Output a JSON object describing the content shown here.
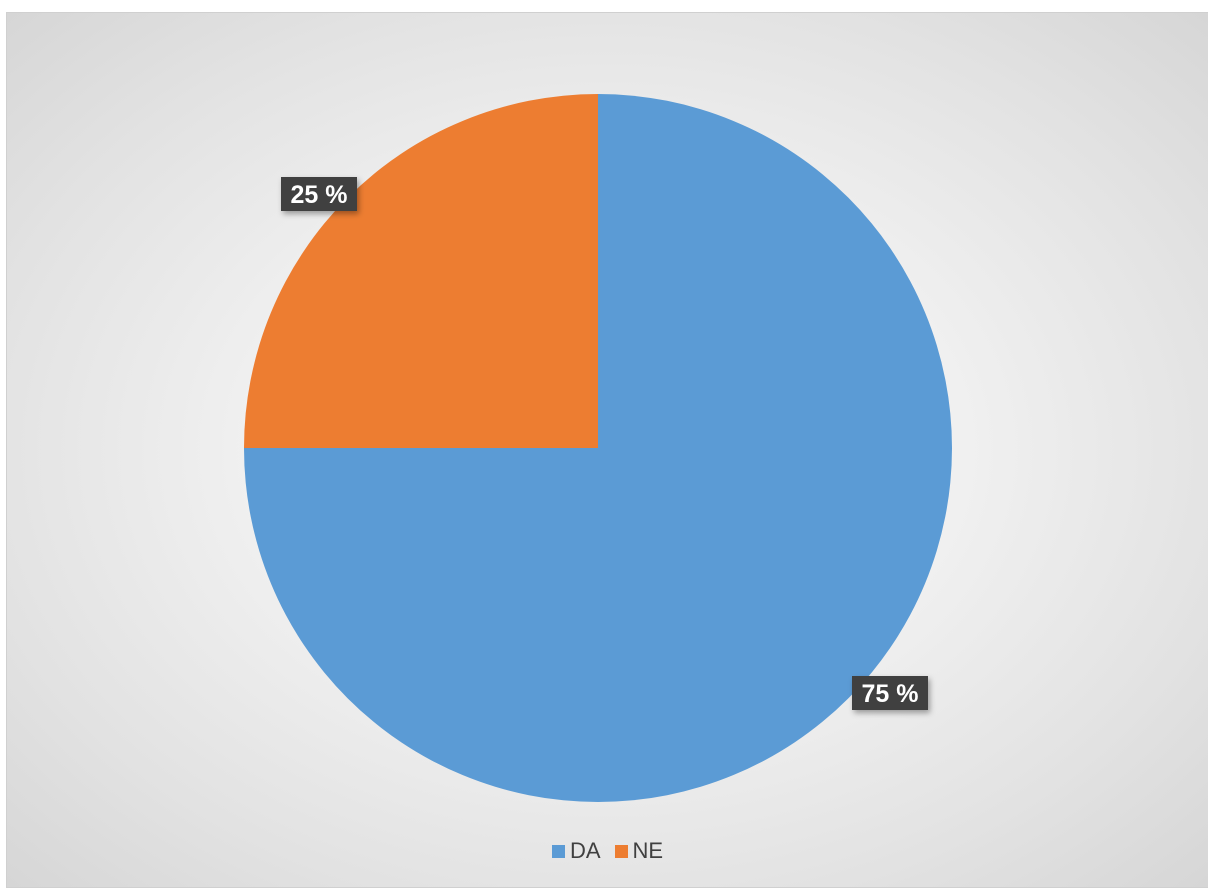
{
  "chart_data": {
    "type": "pie",
    "title": "",
    "series": [
      {
        "name": "",
        "values": [
          {
            "label": "DA",
            "value": 75,
            "data_label": "75 %",
            "color": "#5b9bd5"
          },
          {
            "label": "NE",
            "value": 25,
            "data_label": "25 %",
            "color": "#ed7d31"
          }
        ]
      }
    ],
    "start_angle_deg": 0,
    "direction": "clockwise",
    "legend_position": "bottom",
    "data_label_style": "dark-box"
  }
}
